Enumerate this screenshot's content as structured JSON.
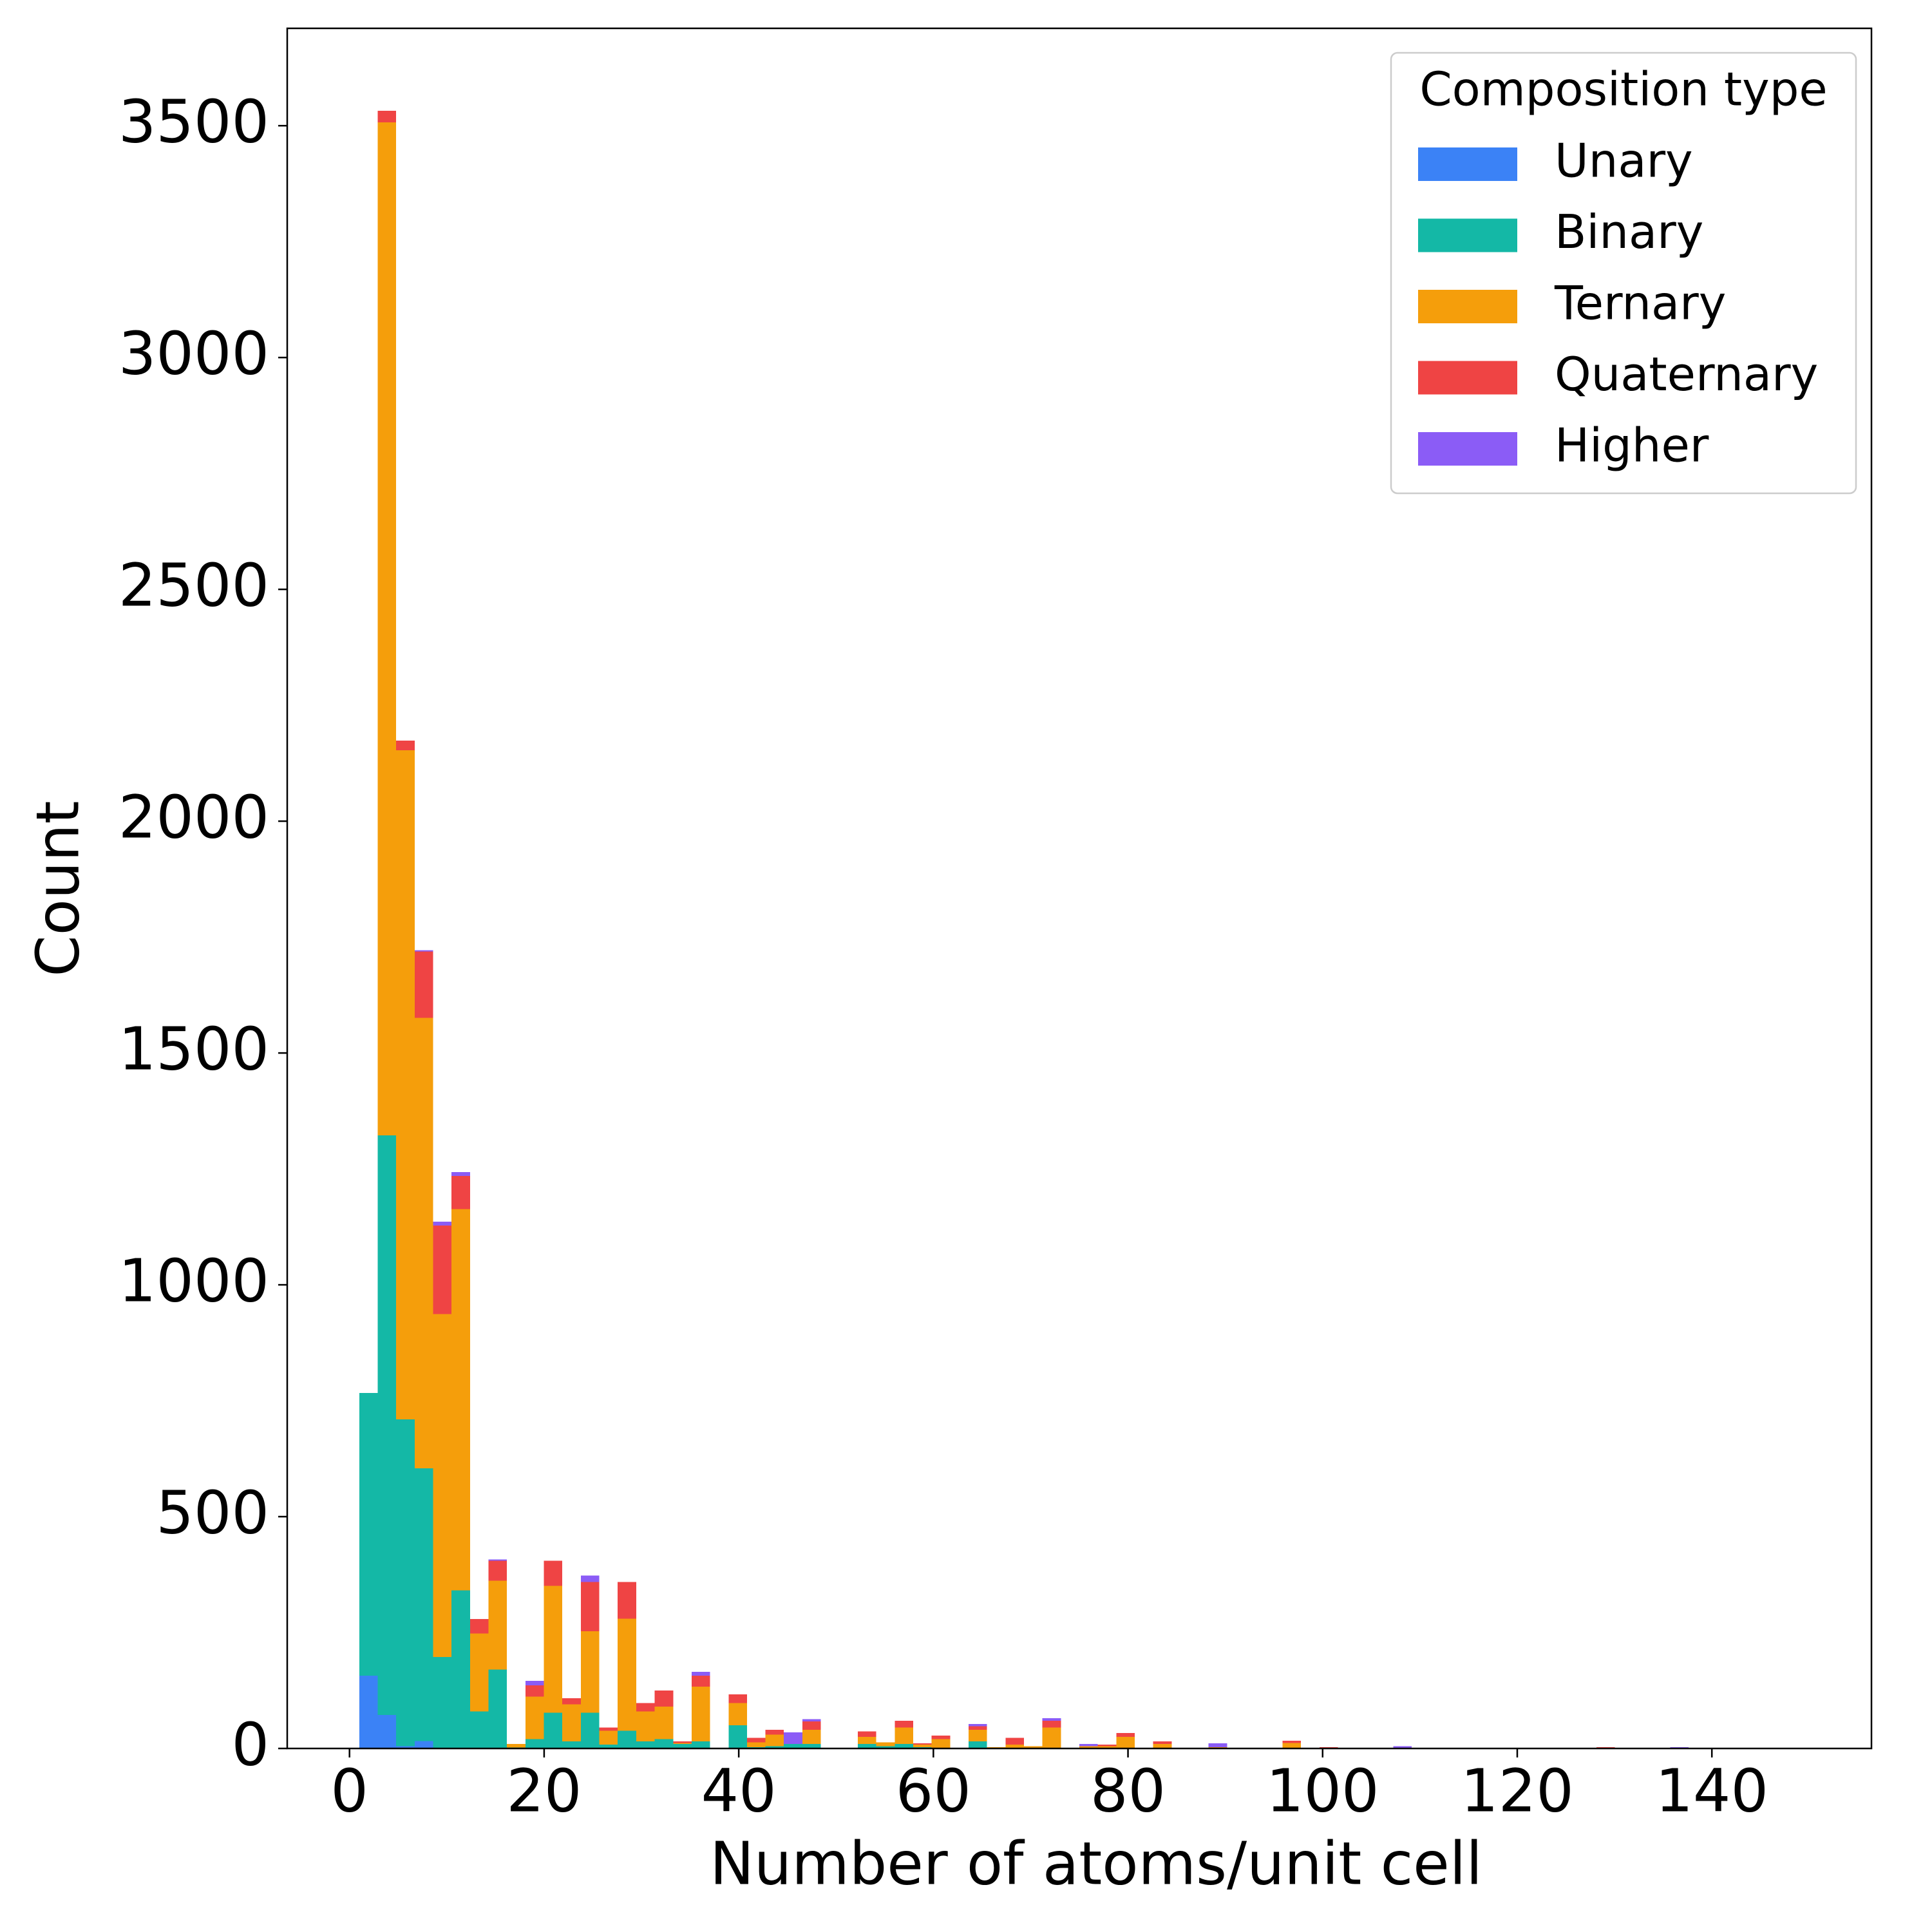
{
  "chart_data": {
    "type": "histogram",
    "stacked": true,
    "x_label": "Number of atoms/unit cell",
    "y_label": "Count",
    "legend_title": "Composition type",
    "legend": "upper right",
    "grid": false,
    "xlim": [
      -6.4,
      156.4
    ],
    "ylim": [
      0,
      3710
    ],
    "xticks": [
      0,
      20,
      40,
      60,
      80,
      100,
      120,
      140
    ],
    "yticks": [
      0,
      500,
      1000,
      1500,
      2000,
      2500,
      3000,
      3500
    ],
    "bins": [
      1,
      2.9,
      4.79,
      6.69,
      8.59,
      10.49,
      12.38,
      14.28,
      16.18,
      18.08,
      19.97,
      21.87,
      23.77,
      25.67,
      27.56,
      29.46,
      31.36,
      33.26,
      35.15,
      37.05,
      38.95,
      40.85,
      42.74,
      44.64,
      46.54,
      48.44,
      50.33,
      52.23,
      54.13,
      56.03,
      57.92,
      59.82,
      61.72,
      63.62,
      65.51,
      67.41,
      69.31,
      71.21,
      73.1,
      75,
      76.9,
      78.79,
      80.69,
      82.59,
      84.49,
      86.38,
      88.28,
      90.18,
      92.08,
      93.97,
      95.87,
      97.77,
      99.67,
      101.56,
      103.46,
      105.36,
      107.26,
      109.15,
      111.05,
      112.95,
      114.85,
      116.74,
      118.64,
      120.54,
      122.44,
      124.33,
      126.23,
      128.13,
      130.03,
      131.92,
      133.82,
      135.72,
      137.62,
      139.51,
      141.41,
      143.31,
      145.21,
      147.1,
      149
    ],
    "series": [
      {
        "name": "Unary",
        "color": "#3b82f6",
        "values": [
          157,
          72,
          5,
          16,
          0,
          0,
          0,
          0,
          0,
          0,
          0,
          0,
          0,
          0,
          0,
          0,
          0,
          0,
          0,
          0,
          0,
          0,
          0,
          0,
          0,
          0,
          0,
          0,
          0,
          0,
          0,
          0,
          0,
          0,
          0,
          0,
          0,
          0,
          0,
          0,
          0,
          0,
          0,
          0,
          0,
          0,
          0,
          0,
          0,
          0,
          0,
          0,
          0,
          0,
          0,
          0,
          0,
          0,
          0,
          0,
          0,
          0,
          0,
          0,
          0,
          0,
          0,
          0,
          0,
          0,
          0,
          0,
          0,
          0,
          0,
          0,
          0,
          0
        ]
      },
      {
        "name": "Binary",
        "color": "#14b8a6",
        "values": [
          610,
          1250,
          705,
          588,
          197,
          341,
          80,
          170,
          2,
          20,
          77,
          15,
          77,
          8,
          38,
          15,
          20,
          10,
          15,
          0,
          50,
          3,
          5,
          10,
          10,
          0,
          0,
          10,
          5,
          10,
          3,
          0,
          0,
          15,
          0,
          0,
          0,
          0,
          0,
          0,
          0,
          0,
          0,
          0,
          0,
          0,
          0,
          0,
          0,
          0,
          0,
          0,
          0,
          0,
          0,
          0,
          0,
          0,
          0,
          0,
          0,
          0,
          0,
          0,
          0,
          0,
          0,
          0,
          0,
          0,
          0,
          0,
          0,
          0,
          0,
          0,
          0,
          0
        ]
      },
      {
        "name": "Ternary",
        "color": "#f59e0b",
        "values": [
          0,
          2185,
          1443,
          972,
          740,
          822,
          168,
          192,
          8,
          92,
          274,
          80,
          176,
          30,
          242,
          65,
          70,
          2,
          118,
          0,
          48,
          10,
          25,
          0,
          30,
          0,
          0,
          15,
          8,
          35,
          5,
          20,
          0,
          25,
          3,
          8,
          5,
          45,
          0,
          5,
          5,
          25,
          0,
          10,
          0,
          0,
          3,
          0,
          0,
          0,
          12,
          0,
          0,
          0,
          0,
          0,
          0,
          0,
          0,
          0,
          0,
          0,
          0,
          0,
          0,
          0,
          0,
          0,
          0,
          0,
          0,
          0,
          0,
          0,
          0,
          0,
          0,
          0
        ]
      },
      {
        "name": "Quaternary",
        "color": "#ef4444",
        "values": [
          0,
          25,
          21,
          143,
          191,
          72,
          31,
          43,
          0,
          24,
          54,
          13,
          106,
          7,
          79,
          18,
          35,
          3,
          24,
          0,
          19,
          10,
          10,
          0,
          18,
          0,
          0,
          12,
          0,
          15,
          3,
          8,
          0,
          8,
          0,
          15,
          0,
          15,
          0,
          0,
          3,
          8,
          0,
          5,
          0,
          0,
          0,
          0,
          0,
          0,
          5,
          0,
          3,
          0,
          0,
          0,
          0,
          0,
          0,
          0,
          0,
          0,
          0,
          0,
          0,
          0,
          0,
          3,
          0,
          0,
          0,
          0,
          0,
          0,
          0,
          0,
          0,
          0
        ]
      },
      {
        "name": "Higher",
        "color": "#8b5cf6",
        "values": [
          0,
          0,
          0,
          3,
          8,
          8,
          0,
          3,
          0,
          10,
          0,
          0,
          14,
          0,
          0,
          0,
          0,
          0,
          8,
          0,
          0,
          0,
          0,
          25,
          5,
          0,
          0,
          0,
          0,
          0,
          0,
          0,
          0,
          5,
          0,
          0,
          0,
          5,
          0,
          5,
          0,
          0,
          0,
          0,
          0,
          0,
          8,
          0,
          0,
          0,
          0,
          0,
          0,
          0,
          0,
          0,
          5,
          0,
          0,
          0,
          0,
          0,
          0,
          0,
          0,
          0,
          0,
          0,
          0,
          0,
          0,
          3,
          0,
          0,
          0,
          0,
          0,
          0
        ]
      }
    ]
  }
}
